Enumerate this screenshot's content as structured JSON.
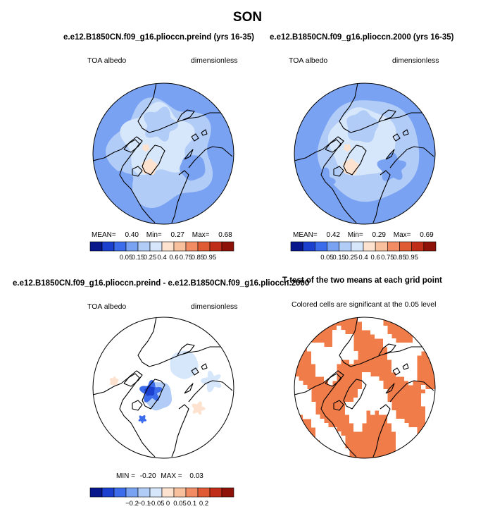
{
  "figure_title": "SON",
  "chart_data": [
    {
      "type": "heatmap",
      "projection": "north-polar-stereographic",
      "title": "e.e12.B1850CN.f09_g16.plioccn.preind (yrs 16-35)",
      "left_label": "TOA albedo",
      "right_label": "dimensionless",
      "stats_text": {
        "mean_label": "MEAN=",
        "mean": "0.40",
        "min_label": "Min=",
        "min": "0.27",
        "max_label": "Max=",
        "max": "0.68"
      },
      "colorbar": {
        "levels": [
          "0.05",
          "0.15",
          "0.25",
          "0.4",
          "0.6",
          "0.75",
          "0.85",
          "0.95"
        ],
        "colors": [
          "#08178c",
          "#1b3fce",
          "#3c6cec",
          "#7aa2f2",
          "#b1ccf7",
          "#d6e6fb",
          "#fde3cf",
          "#f9c09e",
          "#f28c64",
          "#e05a33",
          "#c02d18",
          "#8f1209"
        ]
      }
    },
    {
      "type": "heatmap",
      "projection": "north-polar-stereographic",
      "title": "e.e12.B1850CN.f09_g16.plioccn.2000 (yrs 16-35)",
      "left_label": "TOA albedo",
      "right_label": "dimensionless",
      "stats_text": {
        "mean_label": "MEAN=",
        "mean": "0.42",
        "min_label": "Min=",
        "min": "0.29",
        "max_label": "Max=",
        "max": "0.69"
      },
      "colorbar": {
        "levels": [
          "0.05",
          "0.15",
          "0.25",
          "0.4",
          "0.6",
          "0.75",
          "0.85",
          "0.95"
        ],
        "colors": [
          "#08178c",
          "#1b3fce",
          "#3c6cec",
          "#7aa2f2",
          "#b1ccf7",
          "#d6e6fb",
          "#fde3cf",
          "#f9c09e",
          "#f28c64",
          "#e05a33",
          "#c02d18",
          "#8f1209"
        ]
      }
    },
    {
      "type": "heatmap",
      "projection": "north-polar-stereographic",
      "title": "e.e12.B1850CN.f09_g16.plioccn.preind - e.e12.B1850CN.f09_g16.plioccn.2000",
      "left_label": "TOA albedo",
      "right_label": "dimensionless",
      "stats_text": {
        "min_label": "MIN =",
        "min": "-0.20",
        "max_label": "MAX =",
        "max": "0.03"
      },
      "colorbar": {
        "levels": [
          "−0.2",
          "−0.1",
          "−0.05",
          "0",
          "0.05",
          "0.1",
          "0.2"
        ],
        "colors": [
          "#08178c",
          "#1b3fce",
          "#3c6cec",
          "#7aa2f2",
          "#b1ccf7",
          "#d6e6fb",
          "#fde3cf",
          "#f9c09e",
          "#f28c64",
          "#e05a33",
          "#c02d18",
          "#8f1209"
        ]
      }
    },
    {
      "type": "heatmap",
      "projection": "north-polar-stereographic",
      "title": "T-test of the two means at each grid point",
      "subtitle": "Colored cells are significant at the 0.05 level",
      "significant_color": "#f07c4a"
    }
  ]
}
